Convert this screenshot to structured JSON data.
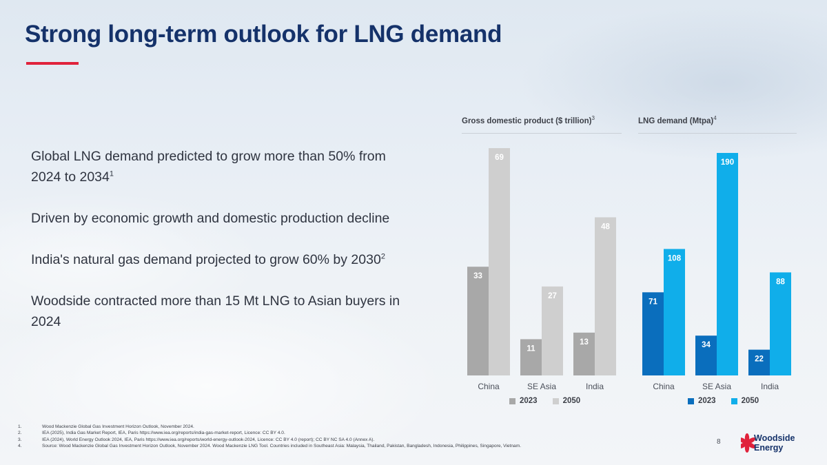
{
  "title": "Strong long-term outlook for LNG demand",
  "colors": {
    "title": "#15326a",
    "accent": "#e0223b",
    "gdp2023": "#a8a8a8",
    "gdp2050": "#cfcfcf",
    "lng2023": "#0a6ebd",
    "lng2050": "#10aeea"
  },
  "bullets": [
    "Global LNG demand predicted to grow more than 50% from 2024 to 2034",
    "Driven by economic growth and domestic production decline",
    "India's natural gas demand projected to grow 60% by 2030",
    "Woodside contracted more than 15 Mt LNG to Asian buyers in 2024"
  ],
  "bullet_refs": [
    "1",
    "",
    "2",
    ""
  ],
  "chart_data": [
    {
      "type": "bar",
      "title": "Gross domestic product ($ trillion)",
      "ref": "3",
      "categories": [
        "China",
        "SE Asia",
        "India"
      ],
      "series": [
        {
          "name": "2023",
          "values": [
            33,
            11,
            13
          ]
        },
        {
          "name": "2050",
          "values": [
            69,
            27,
            48
          ]
        }
      ],
      "ylim": [
        0,
        100
      ],
      "legend": "bottom"
    },
    {
      "type": "bar",
      "title": "LNG demand (Mtpa)",
      "ref": "4",
      "categories": [
        "China",
        "SE Asia",
        "India"
      ],
      "series": [
        {
          "name": "2023",
          "values": [
            71,
            34,
            22
          ]
        },
        {
          "name": "2050",
          "values": [
            108,
            190,
            88
          ]
        }
      ],
      "ylim": [
        0,
        200
      ],
      "legend": "bottom"
    }
  ],
  "footnotes": [
    {
      "num": "1.",
      "text": "Wood Mackenzie Global Gas Investment Horizon Outlook, November 2024."
    },
    {
      "num": "2.",
      "text": "IEA (2025), India Gas Market Report, IEA, Paris https://www.iea.org/reports/india-gas-market-report, Licence: CC BY 4.0."
    },
    {
      "num": "3.",
      "text": "IEA (2024), World Energy Outlook 2024, IEA, Paris https://www.iea.org/reports/world-energy-outlook-2024, Licence: CC BY 4.0 (report); CC BY NC SA 4.0 (Annex A)."
    },
    {
      "num": "4.",
      "text": "Source: Wood Mackenzie Global Gas Investment Horizon Outlook, November 2024. Wood Mackenzie LNG Tool. Countries included in Southeast Asia: Malaysia, Thailand, Pakistan, Bangladesh, Indonesia, Philippines, Singapore, Vietnam."
    }
  ],
  "page_number": "8",
  "logo": {
    "line1": "Woodside",
    "line2": "Energy",
    "icon": "woodside-flower-icon"
  }
}
